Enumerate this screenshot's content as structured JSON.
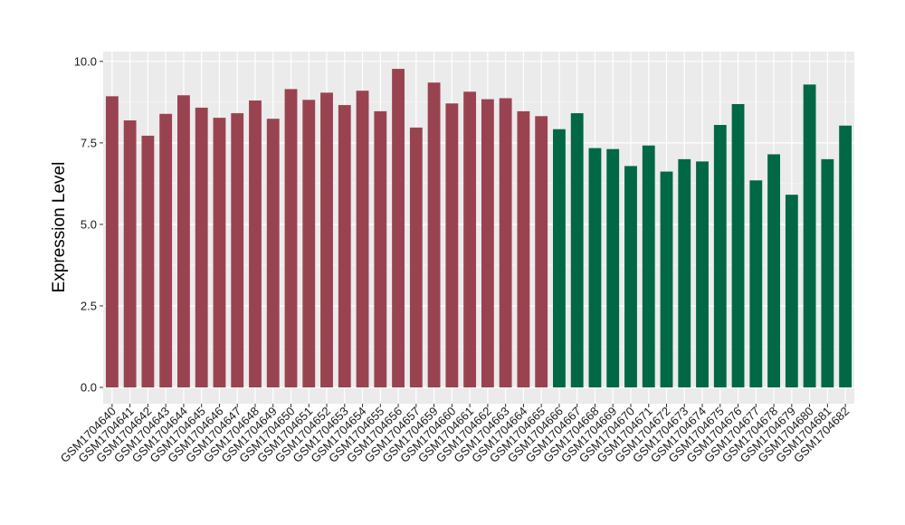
{
  "colors": {
    "panel_background": "#ebebeb",
    "grid_major": "#ffffff",
    "grid_minor": "#f5f5f5",
    "tick": "#333333",
    "group_1": "#9a4350",
    "group_2": "#006845"
  },
  "chart_data": {
    "type": "bar",
    "title": "",
    "xlabel": "",
    "ylabel": "Expression Level",
    "ylim": [
      -0.5,
      10.3
    ],
    "yticks": [
      0.0,
      2.5,
      5.0,
      7.5,
      10.0
    ],
    "ytick_labels": [
      "0.0",
      "2.5",
      "5.0",
      "7.5",
      "10.0"
    ],
    "grid": true,
    "legend": "none",
    "categories": [
      "GSM1704640",
      "GSM1704641",
      "GSM1704642",
      "GSM1704643",
      "GSM1704644",
      "GSM1704645",
      "GSM1704646",
      "GSM1704647",
      "GSM1704648",
      "GSM1704649",
      "GSM1704650",
      "GSM1704651",
      "GSM1704652",
      "GSM1704653",
      "GSM1704654",
      "GSM1704655",
      "GSM1704656",
      "GSM1704657",
      "GSM1704659",
      "GSM1704660",
      "GSM1704661",
      "GSM1704662",
      "GSM1704663",
      "GSM1704664",
      "GSM1704665",
      "GSM1704666",
      "GSM1704667",
      "GSM1704668",
      "GSM1704669",
      "GSM1704670",
      "GSM1704671",
      "GSM1704672",
      "GSM1704673",
      "GSM1704674",
      "GSM1704675",
      "GSM1704676",
      "GSM1704677",
      "GSM1704678",
      "GSM1704679",
      "GSM1704680",
      "GSM1704681",
      "GSM1704682"
    ],
    "values": [
      8.93,
      8.19,
      7.72,
      8.39,
      8.96,
      8.58,
      8.27,
      8.41,
      8.8,
      8.24,
      9.15,
      8.82,
      9.04,
      8.66,
      9.1,
      8.47,
      9.77,
      7.97,
      9.35,
      8.71,
      9.07,
      8.84,
      8.87,
      8.47,
      8.32,
      7.92,
      8.41,
      7.34,
      7.31,
      6.79,
      7.42,
      6.62,
      7.0,
      6.93,
      8.05,
      8.69,
      6.35,
      7.15,
      5.91,
      9.29,
      7.0,
      8.03
    ],
    "groups": [
      1,
      1,
      1,
      1,
      1,
      1,
      1,
      1,
      1,
      1,
      1,
      1,
      1,
      1,
      1,
      1,
      1,
      1,
      1,
      1,
      1,
      1,
      1,
      1,
      1,
      2,
      2,
      2,
      2,
      2,
      2,
      2,
      2,
      2,
      2,
      2,
      2,
      2,
      2,
      2,
      2,
      2
    ]
  }
}
